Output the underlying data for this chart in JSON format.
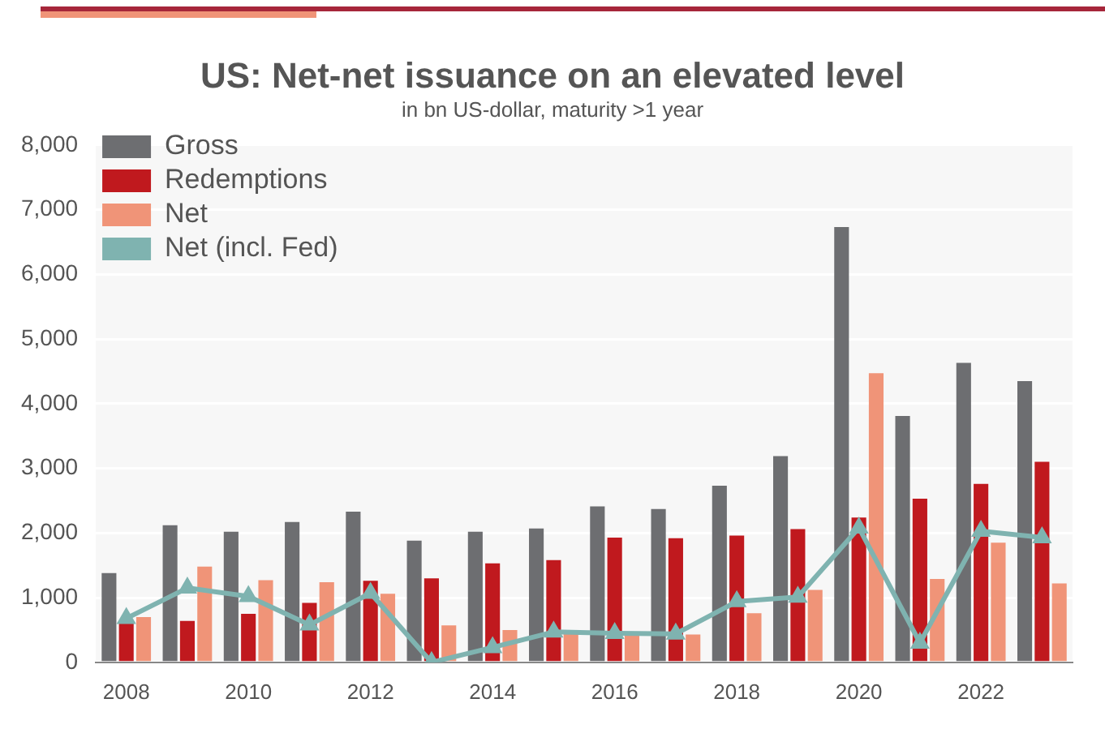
{
  "chart_data": {
    "type": "bar",
    "title": "US: Net-net issuance on an elevated level",
    "subtitle": "in bn US-dollar, maturity >1 year",
    "categories": [
      "2008",
      null,
      "2010",
      null,
      "2012",
      null,
      "2014",
      null,
      "2016",
      null,
      "2018",
      null,
      "2020",
      null,
      "2022",
      null
    ],
    "series": [
      {
        "name": "Gross",
        "color": "#6d6e71",
        "values": [
          1380,
          2120,
          2020,
          2170,
          2330,
          1880,
          2020,
          2070,
          2410,
          2370,
          2730,
          3190,
          6730,
          3810,
          4630,
          4350
        ]
      },
      {
        "name": "Redemptions",
        "color": "#c0191e",
        "values": [
          620,
          640,
          750,
          920,
          1260,
          1300,
          1530,
          1580,
          1930,
          1920,
          1960,
          2060,
          2240,
          2530,
          2760,
          3100
        ]
      },
      {
        "name": "Net",
        "color": "#f09478",
        "values": [
          700,
          1480,
          1270,
          1240,
          1060,
          570,
          500,
          450,
          420,
          430,
          760,
          1120,
          4470,
          1290,
          1850,
          1220
        ]
      },
      {
        "name": "Net (incl. Fed)",
        "type": "line",
        "color": "#7fb3b0",
        "values": [
          680,
          1150,
          1020,
          580,
          1070,
          0,
          230,
          470,
          450,
          440,
          940,
          1010,
          2080,
          300,
          2030,
          1930
        ]
      }
    ],
    "ylim": [
      0,
      8000
    ],
    "yticks": [
      0,
      {
        "value": 1000,
        "label": "1,000"
      },
      {
        "value": 2000,
        "label": "2,000"
      },
      {
        "value": 3000,
        "label": "3,000"
      },
      {
        "value": 4000,
        "label": "4,000"
      },
      {
        "value": 5000,
        "label": "5,000"
      },
      {
        "value": 6000,
        "label": "6,000"
      },
      {
        "value": 7000,
        "label": "7,000"
      },
      {
        "value": 8000,
        "label": "8,000"
      }
    ],
    "grid": "y",
    "legend": "top left",
    "marker": "triangle"
  }
}
